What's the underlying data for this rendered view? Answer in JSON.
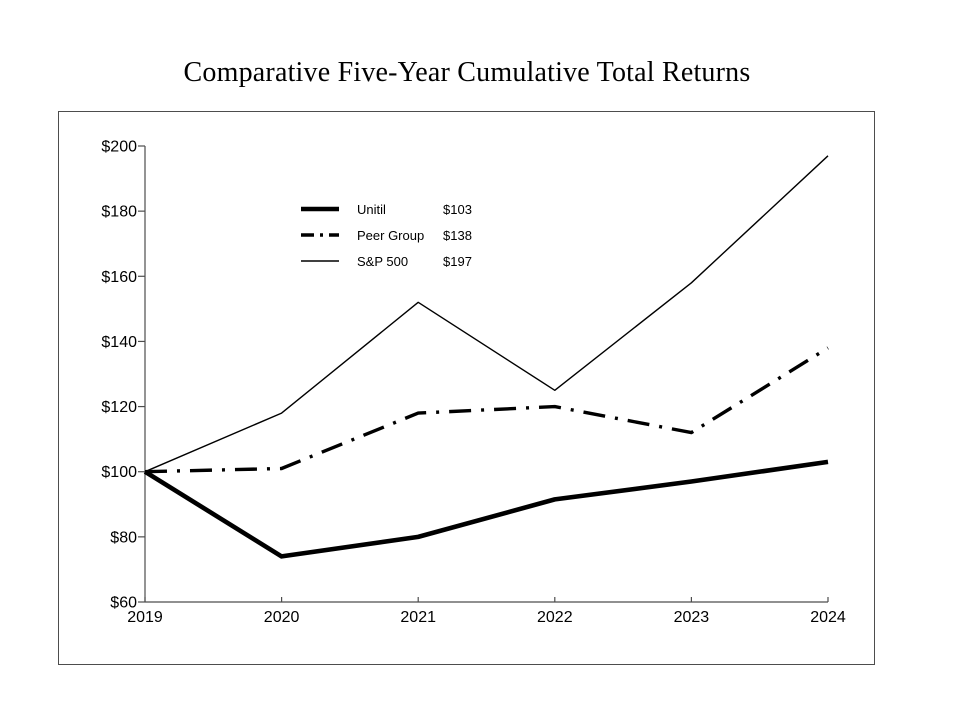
{
  "title": "Comparative Five-Year Cumulative Total Returns",
  "chart_data": {
    "type": "line",
    "title": "Comparative Five-Year Cumulative Total Returns",
    "categories": [
      "2019",
      "2020",
      "2021",
      "2022",
      "2023",
      "2024"
    ],
    "series": [
      {
        "name": "Unitil",
        "style": "thick-solid",
        "final_label": "$103",
        "values": [
          100,
          74,
          80,
          91.5,
          97,
          103
        ]
      },
      {
        "name": "Peer Group",
        "style": "dash-dot",
        "final_label": "$138",
        "values": [
          100,
          101,
          118,
          120,
          112,
          138
        ]
      },
      {
        "name": "S&P 500",
        "style": "thin-solid",
        "final_label": "$197",
        "values": [
          100,
          118,
          152,
          125,
          158,
          197
        ]
      }
    ],
    "xlabel": "",
    "ylabel": "",
    "ylim": [
      60,
      200
    ],
    "y_tick_step": 20,
    "y_tick_labels": [
      "$60",
      "$80",
      "$100",
      "$120",
      "$140",
      "$160",
      "$180",
      "$200"
    ],
    "grid": "off",
    "legend_position": "upper-left-inside",
    "line_color": "#000000",
    "axis_color": "#4d4d4d",
    "background_color": "#ffffff"
  }
}
